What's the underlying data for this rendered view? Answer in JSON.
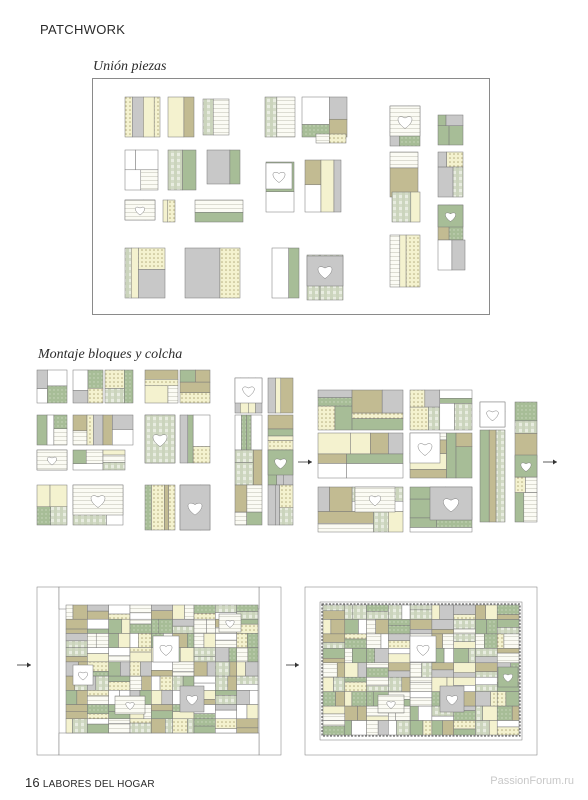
{
  "header": {
    "section": "PATCHWORK"
  },
  "sections": {
    "union": "Unión piezas",
    "montaje": "Montaje bloques y colcha"
  },
  "footer": {
    "page": "16",
    "magazine": "LABORES DEL HOGAR"
  },
  "watermark": "PassionForum.ru",
  "palette": {
    "tan": "#c2bb92",
    "sage": "#a7bd97",
    "grey": "#c8c8c8",
    "cream": "#f4f2cf",
    "outline": "#777777"
  }
}
